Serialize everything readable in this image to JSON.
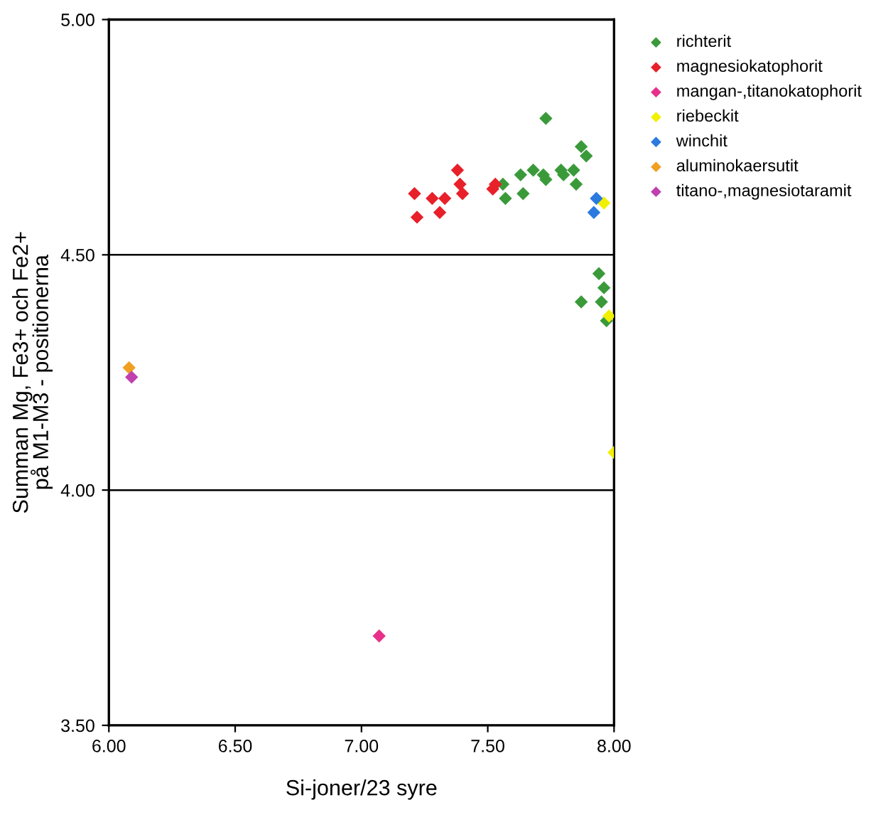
{
  "chart_data": {
    "type": "scatter",
    "xlabel": "Si-joner/23 syre",
    "ylabel": "Summan Mg, Fe3+ och Fe2+\npå M1-M3 - positionerna",
    "xlim": [
      6.0,
      8.0
    ],
    "ylim": [
      3.5,
      5.0
    ],
    "xticks": [
      {
        "value": 6.0,
        "label": "6.00"
      },
      {
        "value": 6.5,
        "label": "6.50"
      },
      {
        "value": 7.0,
        "label": "7.00"
      },
      {
        "value": 7.5,
        "label": "7.50"
      },
      {
        "value": 8.0,
        "label": "8.00"
      }
    ],
    "yticks": [
      {
        "value": 3.5,
        "label": "3.50"
      },
      {
        "value": 4.0,
        "label": "4.00"
      },
      {
        "value": 4.5,
        "label": "4.50"
      },
      {
        "value": 5.0,
        "label": "5.00"
      }
    ],
    "grid": "y",
    "legend": "top right",
    "marker": "diamond",
    "series": [
      {
        "name": "richterit",
        "color": "#3a9a3a",
        "x": [
          7.73,
          7.56,
          7.57,
          7.63,
          7.64,
          7.68,
          7.72,
          7.73,
          7.79,
          7.8,
          7.84,
          7.85,
          7.87,
          7.89,
          7.94,
          7.96,
          7.87,
          7.95,
          7.97
        ],
        "values": [
          4.79,
          4.65,
          4.62,
          4.67,
          4.63,
          4.68,
          4.67,
          4.66,
          4.68,
          4.67,
          4.68,
          4.65,
          4.73,
          4.71,
          4.46,
          4.43,
          4.4,
          4.4,
          4.36
        ]
      },
      {
        "name": "magnesiokatophorit",
        "color": "#e8202a",
        "x": [
          7.21,
          7.22,
          7.28,
          7.31,
          7.33,
          7.38,
          7.39,
          7.4,
          7.52,
          7.53
        ],
        "values": [
          4.63,
          4.58,
          4.62,
          4.59,
          4.62,
          4.68,
          4.65,
          4.63,
          4.64,
          4.65
        ]
      },
      {
        "name": "mangan-,titanokatophorit",
        "color": "#e8308a",
        "x": [
          7.07
        ],
        "values": [
          3.69
        ]
      },
      {
        "name": "riebeckit",
        "color": "#f0f000",
        "x": [
          7.96,
          7.98,
          8.0
        ],
        "values": [
          4.61,
          4.37,
          4.08
        ]
      },
      {
        "name": "winchit",
        "color": "#2a7ae0",
        "x": [
          7.93,
          7.92
        ],
        "values": [
          4.62,
          4.59
        ]
      },
      {
        "name": "aluminokaersutit",
        "color": "#f0a020",
        "x": [
          6.08
        ],
        "values": [
          4.26
        ]
      },
      {
        "name": "titano-,magnesiotaramit",
        "color": "#c040b0",
        "x": [
          6.09
        ],
        "values": [
          4.24
        ]
      }
    ]
  }
}
